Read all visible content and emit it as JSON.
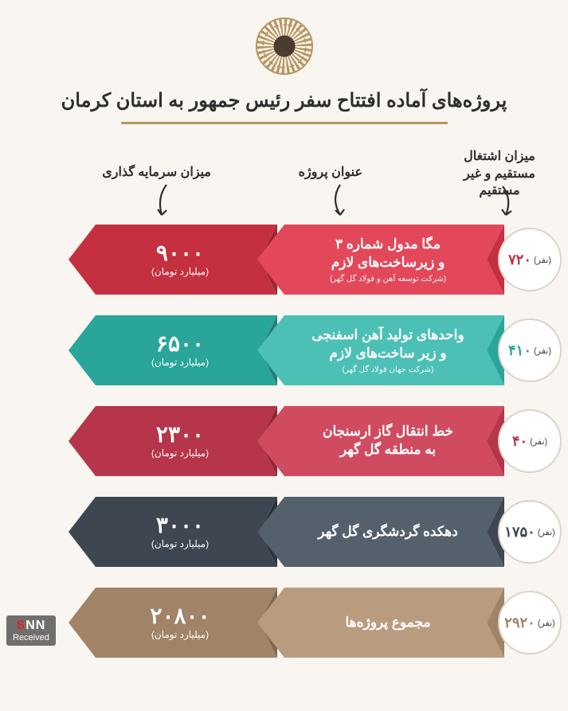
{
  "title": "پروژه‌های آماده افتتاح سفر رئیس جمهور به استان کرمان",
  "labels": {
    "investment": "میزان سرمایه گذاری",
    "project": "عنوان پروژه",
    "employment": "میزان اشتغال\nمستقیم و غیر مستقیم"
  },
  "invest_unit": "(میلیارد تومان)",
  "emp_unit": "(نفر)",
  "rows": [
    {
      "invest": "۹۰۰۰",
      "proj_title": "مگا مدول شماره ۳\nو زیرساخت‌های لازم",
      "proj_sub": "(شرکت توسعه آهن و فولاد گل گهر)",
      "emp": "۷۲۰",
      "c1": "#c4303f",
      "c1d": "#9e2432",
      "c2": "#e3485a",
      "c2d": "#c4303f",
      "emp_color": "#c4303f"
    },
    {
      "invest": "۶۵۰۰",
      "proj_title": "واحدهای تولید آهن اسفنجی\nو زیر ساخت‌های لازم",
      "proj_sub": "(شرکت جهان فولاد گل گهر)",
      "emp": "۴۱۰",
      "c1": "#2aa59a",
      "c1d": "#1f827a",
      "c2": "#4cc0b5",
      "c2d": "#2aa59a",
      "emp_color": "#2aa59a"
    },
    {
      "invest": "۲۳۰۰",
      "proj_title": "خط انتقال گاز ارسنجان\nبه منطقه گل گهر",
      "proj_sub": "",
      "emp": "۴۰",
      "c1": "#b6354a",
      "c1d": "#8f2739",
      "c2": "#d14b60",
      "c2d": "#b6354a",
      "emp_color": "#b6354a"
    },
    {
      "invest": "۳۰۰۰",
      "proj_title": "دهکده گردشگری گل گهر",
      "proj_sub": "",
      "emp": "۱۷۵۰",
      "c1": "#3d4651",
      "c1d": "#2b323a",
      "c2": "#55606d",
      "c2d": "#3d4651",
      "emp_color": "#3d4651"
    },
    {
      "invest": "۲۰۸۰۰",
      "proj_title": "مجموع پروژه‌ها",
      "proj_sub": "",
      "emp": "۲۹۲۰",
      "c1": "#a18368",
      "c1d": "#816651",
      "c2": "#b99c80",
      "c2d": "#a18368",
      "emp_color": "#a18368"
    }
  ],
  "watermark": {
    "brand_s": "S",
    "brand_rest": "NN",
    "sub": "Received"
  }
}
